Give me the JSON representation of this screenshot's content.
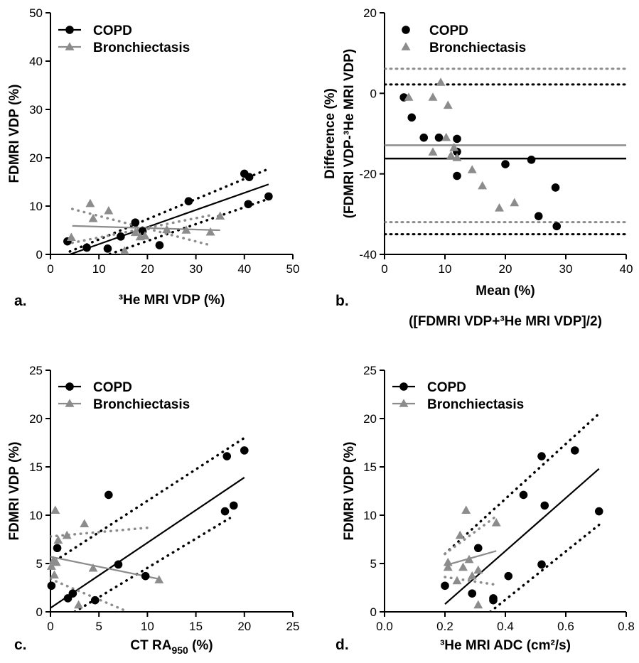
{
  "colors": {
    "copd": "#000000",
    "bronchiectasis": "#8c8c8c"
  },
  "chart_data": [
    {
      "panel": "a.",
      "type": "scatter",
      "xlabel": "³He MRI VDP (%)",
      "ylabel": "FDMRI VDP (%)",
      "xlim": [
        0,
        50
      ],
      "ylim": [
        0,
        50
      ],
      "xticks": [
        0,
        10,
        20,
        30,
        40,
        50
      ],
      "yticks": [
        0,
        10,
        20,
        30,
        40,
        50
      ],
      "legend": {
        "position": "top-left"
      },
      "series": [
        {
          "name": "COPD",
          "marker": "circle",
          "color": "#000000",
          "points": [
            [
              3.5,
              2.7
            ],
            [
              7.5,
              1.4
            ],
            [
              11.8,
              1.2
            ],
            [
              14.5,
              3.7
            ],
            [
              17.5,
              6.6
            ],
            [
              19,
              4.8
            ],
            [
              22.5,
              1.9
            ],
            [
              28.5,
              11
            ],
            [
              40,
              16.7
            ],
            [
              41,
              16
            ],
            [
              40.8,
              10.4
            ],
            [
              45,
              12
            ]
          ],
          "fit": [
            [
              4,
              0
            ],
            [
              45,
              14.5
            ]
          ],
          "ci": [
            [
              [
                4,
                0.6
              ],
              [
                45,
                17.7
              ]
            ],
            [
              [
                4,
                -2.8
              ],
              [
                45,
                11.5
              ]
            ]
          ]
        },
        {
          "name": "Bronchiectasis",
          "marker": "triangle",
          "color": "#8c8c8c",
          "points": [
            [
              4.3,
              3.5
            ],
            [
              8.2,
              10.5
            ],
            [
              8.8,
              7.4
            ],
            [
              12,
              9
            ],
            [
              15.3,
              0.7
            ],
            [
              17.5,
              4.5
            ],
            [
              18.5,
              3.6
            ],
            [
              19.5,
              3.8
            ],
            [
              24,
              5.1
            ],
            [
              28,
              5
            ],
            [
              33,
              4.6
            ],
            [
              35,
              7.9
            ]
          ],
          "fit": [
            [
              4.5,
              5.9
            ],
            [
              35,
              5.0
            ]
          ],
          "ci": [
            [
              [
                4.5,
                9.4
              ],
              [
                33,
                1.9
              ]
            ],
            [
              [
                4.5,
                2.4
              ],
              [
                33,
                8.1
              ]
            ]
          ]
        }
      ]
    },
    {
      "panel": "b.",
      "type": "scatter",
      "xlabel": "Mean (%)",
      "xlabel2": "([FDMRI VDP+³He MRI VDP]/2)",
      "ylabel": "Difference (%)",
      "ylabel2": "(FDMRI VDP-³He MRI VDP)",
      "xlim": [
        0,
        40
      ],
      "ylim": [
        -40,
        20
      ],
      "xticks": [
        0,
        10,
        20,
        30,
        40
      ],
      "yticks": [
        -40,
        -20,
        0,
        20
      ],
      "legend": {
        "position": "top-right"
      },
      "series": [
        {
          "name": "COPD",
          "marker": "circle",
          "color": "#000000",
          "points": [
            [
              3.2,
              -1
            ],
            [
              4.5,
              -6
            ],
            [
              6.5,
              -11
            ],
            [
              9,
              -11
            ],
            [
              12,
              -11.3
            ],
            [
              12,
              -14.5
            ],
            [
              12,
              -20.5
            ],
            [
              20,
              -17.6
            ],
            [
              24.3,
              -16.5
            ],
            [
              25.5,
              -30.5
            ],
            [
              28.3,
              -23.4
            ],
            [
              28.5,
              -33
            ]
          ],
          "mean_line": -16.2,
          "loa": [
            2.2,
            -35
          ]
        },
        {
          "name": "Bronchiectasis",
          "marker": "triangle",
          "color": "#8c8c8c",
          "points": [
            [
              4,
              -1
            ],
            [
              8,
              -14.6
            ],
            [
              8,
              -1
            ],
            [
              9.3,
              2.7
            ],
            [
              10.2,
              -11
            ],
            [
              10.5,
              -3
            ],
            [
              11,
              -15.5
            ],
            [
              11.5,
              -13.5
            ],
            [
              12,
              -16
            ],
            [
              14.5,
              -19
            ],
            [
              16.2,
              -23
            ],
            [
              19,
              -28.5
            ],
            [
              21.5,
              -27.2
            ]
          ],
          "mean_line": -12.9,
          "loa": [
            6.1,
            -32
          ]
        }
      ]
    },
    {
      "panel": "c.",
      "type": "scatter",
      "xlabel": "CT RA",
      "xlabel_sub": "950",
      "xlabel_suffix": " (%)",
      "ylabel": "FDMRI VDP (%)",
      "xlim": [
        0,
        25
      ],
      "ylim": [
        0,
        25
      ],
      "xticks": [
        0,
        5,
        10,
        15,
        20,
        25
      ],
      "yticks": [
        0,
        5,
        10,
        15,
        20,
        25
      ],
      "legend": {
        "position": "top-left"
      },
      "series": [
        {
          "name": "COPD",
          "marker": "circle",
          "color": "#000000",
          "points": [
            [
              0.1,
              2.7
            ],
            [
              0.7,
              6.6
            ],
            [
              1.8,
              1.4
            ],
            [
              2.3,
              1.9
            ],
            [
              4.6,
              1.2
            ],
            [
              6,
              12.1
            ],
            [
              7,
              4.9
            ],
            [
              9.8,
              3.7
            ],
            [
              18,
              10.4
            ],
            [
              18.2,
              16.1
            ],
            [
              18.9,
              11
            ],
            [
              20,
              16.7
            ]
          ],
          "fit": [
            [
              0,
              0.4
            ],
            [
              20,
              13.9
            ]
          ],
          "ci": [
            [
              [
                0.5,
                5.3
              ],
              [
                20,
                18
              ]
            ],
            [
              [
                2.5,
                0
              ],
              [
                18.5,
                9.7
              ]
            ]
          ]
        },
        {
          "name": "Bronchiectasis",
          "marker": "triangle",
          "color": "#8c8c8c",
          "points": [
            [
              0.1,
              4.7
            ],
            [
              0.3,
              5.3
            ],
            [
              0.4,
              3.8
            ],
            [
              0.5,
              10.5
            ],
            [
              0.6,
              5.1
            ],
            [
              0.8,
              7.4
            ],
            [
              1.7,
              7.9
            ],
            [
              2.9,
              0.7
            ],
            [
              3.5,
              9.1
            ],
            [
              4.4,
              4.5
            ],
            [
              11.2,
              3.3
            ]
          ],
          "fit": [
            [
              0,
              5.7
            ],
            [
              11.2,
              3.4
            ]
          ],
          "ci": [
            [
              [
                0,
                7.8
              ],
              [
                10,
                8.7
              ]
            ],
            [
              [
                0,
                3.4
              ],
              [
                8,
                0
              ]
            ]
          ]
        }
      ]
    },
    {
      "panel": "d.",
      "type": "scatter",
      "xlabel": "³He MRI ADC (cm²/s)",
      "ylabel": "FDMRI VDP (%)",
      "xlim": [
        0.0,
        0.8
      ],
      "ylim": [
        0,
        25
      ],
      "xticks": [
        "0.0",
        "0.2",
        "0.4",
        "0.6",
        "0.8"
      ],
      "yticks": [
        0,
        5,
        10,
        15,
        20,
        25
      ],
      "legend": {
        "position": "top-left"
      },
      "series": [
        {
          "name": "COPD",
          "marker": "circle",
          "color": "#000000",
          "points": [
            [
              0.2,
              2.7
            ],
            [
              0.29,
              1.9
            ],
            [
              0.31,
              6.6
            ],
            [
              0.36,
              1.4
            ],
            [
              0.36,
              1.2
            ],
            [
              0.41,
              3.7
            ],
            [
              0.46,
              12.1
            ],
            [
              0.52,
              16.1
            ],
            [
              0.52,
              4.9
            ],
            [
              0.53,
              11
            ],
            [
              0.63,
              16.7
            ],
            [
              0.71,
              10.4
            ]
          ],
          "fit": [
            [
              0.2,
              0.8
            ],
            [
              0.71,
              14.8
            ]
          ],
          "ci": [
            [
              [
                0.2,
                6
              ],
              [
                0.71,
                20.5
              ]
            ],
            [
              [
                0.35,
                0
              ],
              [
                0.71,
                9
              ]
            ]
          ]
        },
        {
          "name": "Bronchiectasis",
          "marker": "triangle",
          "color": "#8c8c8c",
          "points": [
            [
              0.21,
              4.6
            ],
            [
              0.21,
              5.1
            ],
            [
              0.24,
              3.2
            ],
            [
              0.25,
              7.9
            ],
            [
              0.26,
              4.6
            ],
            [
              0.27,
              10.5
            ],
            [
              0.28,
              5.4
            ],
            [
              0.29,
              3.7
            ],
            [
              0.31,
              0.7
            ],
            [
              0.31,
              4.3
            ],
            [
              0.37,
              9.2
            ]
          ],
          "fit": [
            [
              0.2,
              4.8
            ],
            [
              0.37,
              6.3
            ]
          ],
          "ci": [
            [
              [
                0.2,
                6
              ],
              [
                0.37,
                9.9
              ]
            ],
            [
              [
                0.2,
                3.6
              ],
              [
                0.37,
                2.8
              ]
            ]
          ]
        }
      ]
    }
  ]
}
